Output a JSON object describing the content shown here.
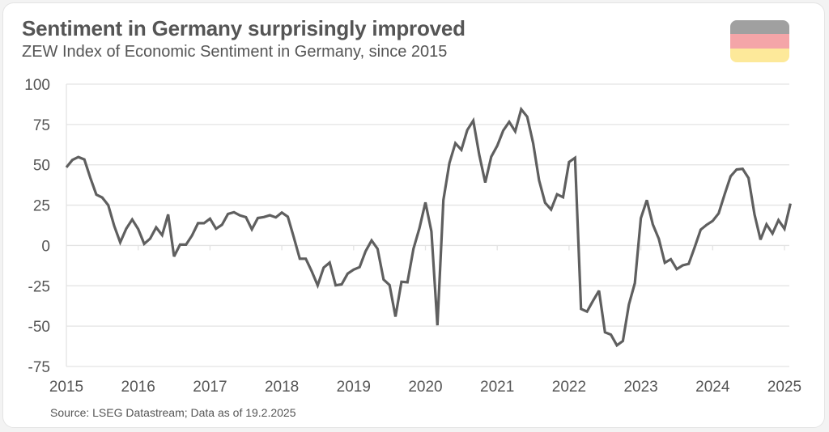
{
  "header": {
    "title": "Sentiment in Germany surprisingly improved",
    "subtitle": "ZEW Index of Economic Sentiment in Germany, since 2015"
  },
  "flag": {
    "name": "Germany",
    "stripes": [
      "#a0a0a0",
      "#f4a5a8",
      "#fde99a"
    ]
  },
  "footer": {
    "source": "Source: LSEG Datastream; Data as of 19.2.2025"
  },
  "colors": {
    "line": "#5f5f5f",
    "grid": "#e3e3e3",
    "text": "#555555"
  },
  "chart_data": {
    "type": "line",
    "title": "Sentiment in Germany surprisingly improved",
    "subtitle": "ZEW Index of Economic Sentiment in Germany, since 2015",
    "xlabel": "",
    "ylabel": "",
    "xlim": [
      2015,
      2025
    ],
    "ylim": [
      -75,
      100
    ],
    "y_ticks": [
      100,
      75,
      50,
      25,
      0,
      -25,
      -50,
      -75
    ],
    "x_ticks": [
      "2015",
      "2016",
      "2017",
      "2018",
      "2019",
      "2020",
      "2021",
      "2022",
      "2023",
      "2024",
      "2025"
    ],
    "grid": true,
    "legend": "none",
    "series": [
      {
        "name": "ZEW Economic Sentiment Germany",
        "start": "2015-01",
        "frequency": "monthly",
        "values": [
          48.4,
          53.0,
          54.8,
          53.3,
          41.9,
          31.5,
          29.7,
          25.0,
          12.1,
          1.9,
          10.4,
          16.1,
          10.2,
          1.0,
          4.3,
          11.2,
          6.4,
          19.2,
          -6.8,
          0.5,
          0.5,
          6.2,
          13.8,
          13.8,
          16.6,
          10.4,
          12.8,
          19.5,
          20.6,
          18.6,
          17.5,
          10.0,
          17.0,
          17.6,
          18.7,
          17.4,
          20.4,
          17.8,
          5.1,
          -8.2,
          -8.2,
          -16.1,
          -24.7,
          -13.7,
          -10.6,
          -24.7,
          -24.1,
          -17.5,
          -15.0,
          -13.4,
          -3.6,
          3.1,
          -2.1,
          -21.1,
          -24.5,
          -44.1,
          -22.5,
          -22.8,
          -2.1,
          10.7,
          26.7,
          8.7,
          -49.5,
          28.2,
          51.0,
          63.4,
          59.3,
          71.5,
          77.4,
          56.1,
          39.0,
          55.0,
          61.8,
          71.2,
          76.6,
          70.7,
          84.4,
          79.8,
          63.3,
          40.4,
          26.5,
          22.3,
          31.7,
          29.9,
          51.7,
          54.3,
          -39.3,
          -41.0,
          -34.3,
          -28.0,
          -53.8,
          -55.3,
          -61.9,
          -59.2,
          -36.7,
          -23.3,
          16.9,
          28.1,
          13.0,
          4.1,
          -10.7,
          -8.5,
          -14.7,
          -12.3,
          -11.4,
          -1.1,
          9.8,
          12.8,
          15.2,
          19.9,
          31.7,
          42.9,
          47.1,
          47.5,
          41.8,
          19.2,
          3.6,
          13.1,
          7.4,
          15.7,
          10.3,
          26.0
        ]
      }
    ]
  }
}
